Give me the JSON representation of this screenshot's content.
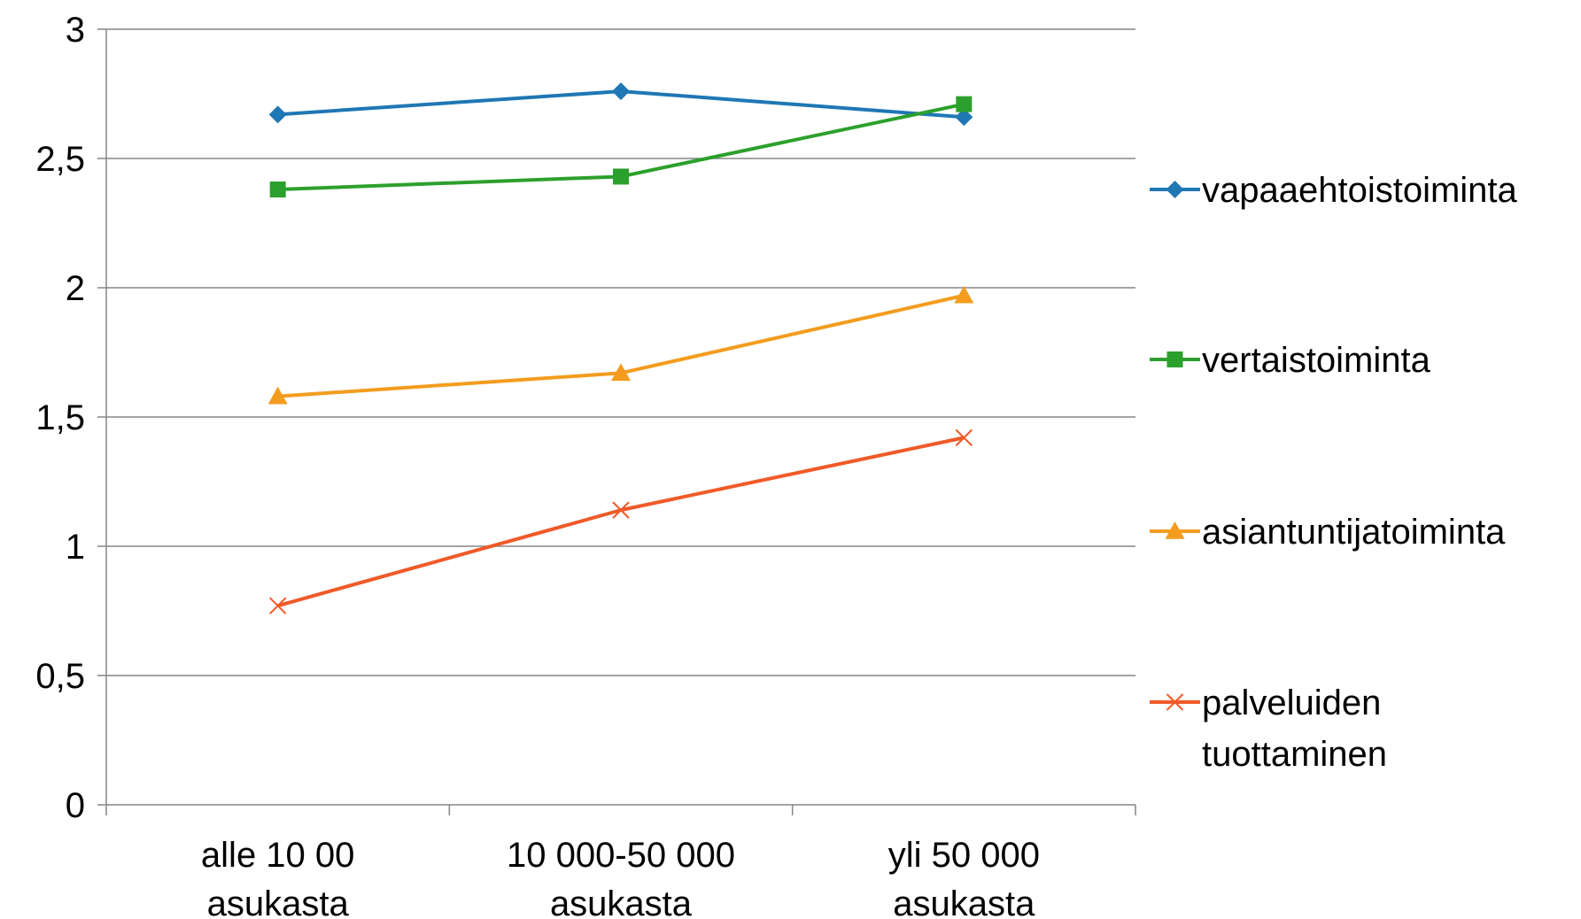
{
  "chart_data": {
    "type": "line",
    "title": "",
    "xlabel": "",
    "ylabel": "",
    "categories": [
      [
        "alle 10 00",
        "asukasta"
      ],
      [
        "10 000-50 000",
        "asukasta"
      ],
      [
        "yli 50 000",
        "asukasta"
      ]
    ],
    "ylim": [
      0,
      3
    ],
    "yticks": [
      0,
      0.5,
      1,
      1.5,
      2,
      2.5,
      3
    ],
    "ytick_labels": [
      "0",
      "0,5",
      "1",
      "1,5",
      "2",
      "2,5",
      "3"
    ],
    "grid": true,
    "legend_position": "right",
    "series": [
      {
        "name": [
          "vapaaehtoistoiminta"
        ],
        "values": [
          2.67,
          2.76,
          2.66
        ],
        "color": "#1f77b4",
        "marker": "diamond"
      },
      {
        "name": [
          "vertaistoiminta"
        ],
        "values": [
          2.38,
          2.43,
          2.71
        ],
        "color": "#2ca02c",
        "marker": "square"
      },
      {
        "name": [
          "asiantuntijatoiminta"
        ],
        "values": [
          1.58,
          1.67,
          1.97
        ],
        "color": "#f39c1e",
        "marker": "triangle"
      },
      {
        "name": [
          "palveluiden",
          "tuottaminen"
        ],
        "values": [
          0.77,
          1.14,
          1.42
        ],
        "color": "#f05a28",
        "marker": "x"
      }
    ]
  }
}
